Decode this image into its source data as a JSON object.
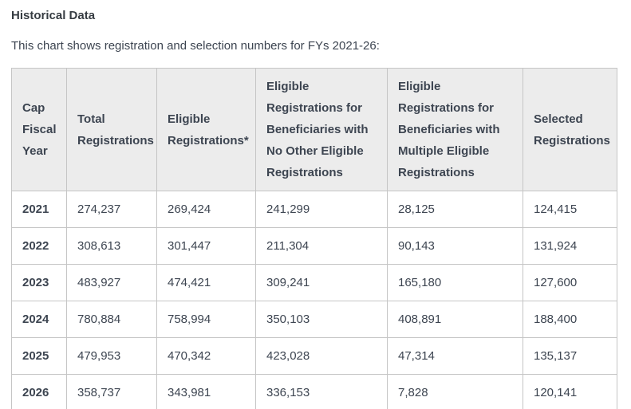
{
  "page": {
    "title": "Historical Data",
    "subtitle": "This chart shows registration and selection numbers for FYs 2021-26:"
  },
  "colors": {
    "text": "#3d4551",
    "header_background": "#ececec",
    "border": "#c5c5c5",
    "page_background": "#ffffff"
  },
  "table": {
    "headers": [
      "Cap Fiscal Year",
      "Total Registrations",
      "Eligible Registrations*",
      "Eligible Registrations for Beneficiaries with No Other Eligible Registrations",
      "Eligible Registrations for Beneficiaries with Multiple Eligible Registrations",
      "Selected Registrations"
    ],
    "rows": [
      {
        "year": "2021",
        "total": "274,237",
        "eligible": "269,424",
        "no_other": "241,299",
        "multiple": "28,125",
        "selected": "124,415"
      },
      {
        "year": "2022",
        "total": "308,613",
        "eligible": "301,447",
        "no_other": "211,304",
        "multiple": "90,143",
        "selected": "131,924"
      },
      {
        "year": "2023",
        "total": "483,927",
        "eligible": "474,421",
        "no_other": "309,241",
        "multiple": "165,180",
        "selected": "127,600"
      },
      {
        "year": "2024",
        "total": "780,884",
        "eligible": "758,994",
        "no_other": "350,103",
        "multiple": "408,891",
        "selected": "188,400"
      },
      {
        "year": "2025",
        "total": "479,953",
        "eligible": "470,342",
        "no_other": "423,028",
        "multiple": "47,314",
        "selected": "135,137"
      },
      {
        "year": "2026",
        "total": "358,737",
        "eligible": "343,981",
        "no_other": "336,153",
        "multiple": "7,828",
        "selected": "120,141"
      }
    ]
  }
}
